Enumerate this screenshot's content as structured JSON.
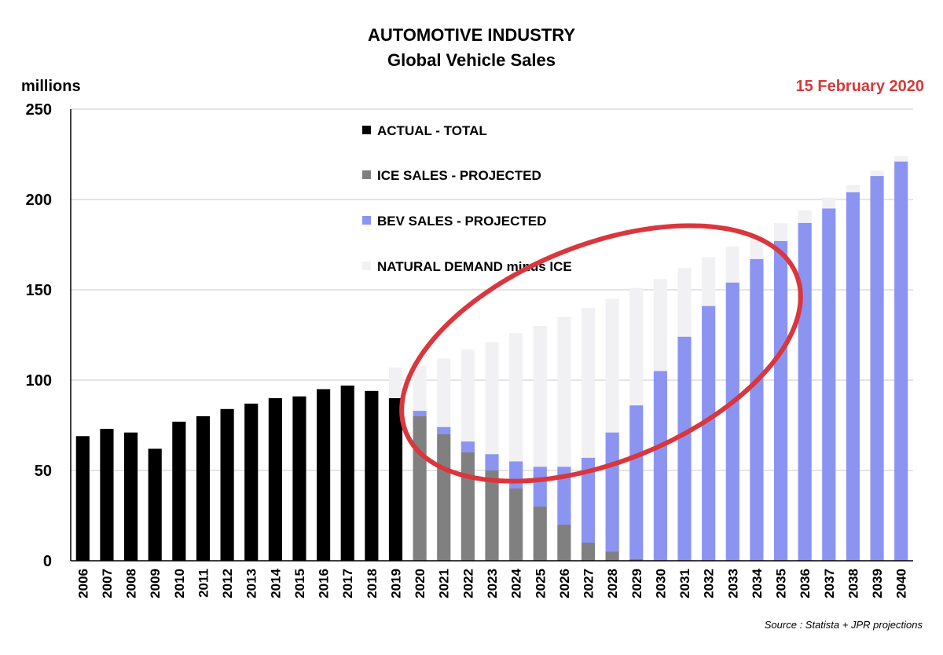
{
  "header": {
    "title": "AUTOMOTIVE INDUSTRY",
    "subtitle": "Global Vehicle Sales",
    "date": "15 February 2020"
  },
  "source": "Source : Statista + JPR projections",
  "colors": {
    "actual": "#000000",
    "ice": "#808080",
    "bev": "#8c94f2",
    "natural": "#f1f1f4",
    "date": "#d33a3a",
    "annotation": "#d9363e",
    "grid": "#c8c8c8"
  },
  "chart_data": {
    "type": "bar",
    "ylabel": "millions",
    "ylim": [
      0,
      250
    ],
    "yticks": [
      0,
      50,
      100,
      150,
      200,
      250
    ],
    "grid": true,
    "legend_position": "top-center",
    "categories": [
      "2006",
      "2007",
      "2008",
      "2009",
      "2010",
      "2011",
      "2012",
      "2013",
      "2014",
      "2015",
      "2016",
      "2017",
      "2018",
      "2019",
      "2020",
      "2021",
      "2022",
      "2023",
      "2024",
      "2025",
      "2026",
      "2027",
      "2028",
      "2029",
      "2030",
      "2031",
      "2032",
      "2033",
      "2034",
      "2035",
      "2036",
      "2037",
      "2038",
      "2039",
      "2040"
    ],
    "series": [
      {
        "name": "ACTUAL - TOTAL",
        "key": "actual",
        "values": [
          69,
          73,
          71,
          62,
          77,
          80,
          84,
          87,
          90,
          91,
          95,
          97,
          94,
          90,
          null,
          null,
          null,
          null,
          null,
          null,
          null,
          null,
          null,
          null,
          null,
          null,
          null,
          null,
          null,
          null,
          null,
          null,
          null,
          null,
          null
        ]
      },
      {
        "name": "ICE SALES - PROJECTED",
        "key": "ice",
        "values": [
          null,
          null,
          null,
          null,
          null,
          null,
          null,
          null,
          null,
          null,
          null,
          null,
          null,
          null,
          80,
          70,
          60,
          50,
          40,
          30,
          20,
          10,
          5,
          1,
          0,
          0,
          0,
          0,
          0,
          0,
          0,
          0,
          0,
          0,
          0
        ]
      },
      {
        "name": "BEV SALES - PROJECTED",
        "key": "bev",
        "values": [
          null,
          null,
          null,
          null,
          null,
          null,
          null,
          null,
          null,
          null,
          null,
          null,
          null,
          null,
          3,
          4,
          6,
          9,
          15,
          22,
          32,
          47,
          66,
          85,
          105,
          124,
          141,
          154,
          167,
          177,
          187,
          195,
          204,
          213,
          221
        ]
      },
      {
        "name": "NATURAL DEMAND minus ICE",
        "key": "natural",
        "values": [
          null,
          null,
          null,
          null,
          null,
          null,
          null,
          null,
          null,
          null,
          null,
          null,
          null,
          107,
          108,
          112,
          117,
          121,
          126,
          130,
          135,
          140,
          145,
          151,
          156,
          162,
          168,
          174,
          180,
          187,
          194,
          201,
          208,
          216,
          224
        ]
      }
    ],
    "annotations": [
      {
        "type": "ellipse-outline",
        "description": "red ellipse highlighting 2020-2035 transition",
        "from": "2020",
        "to": "2035"
      }
    ]
  }
}
